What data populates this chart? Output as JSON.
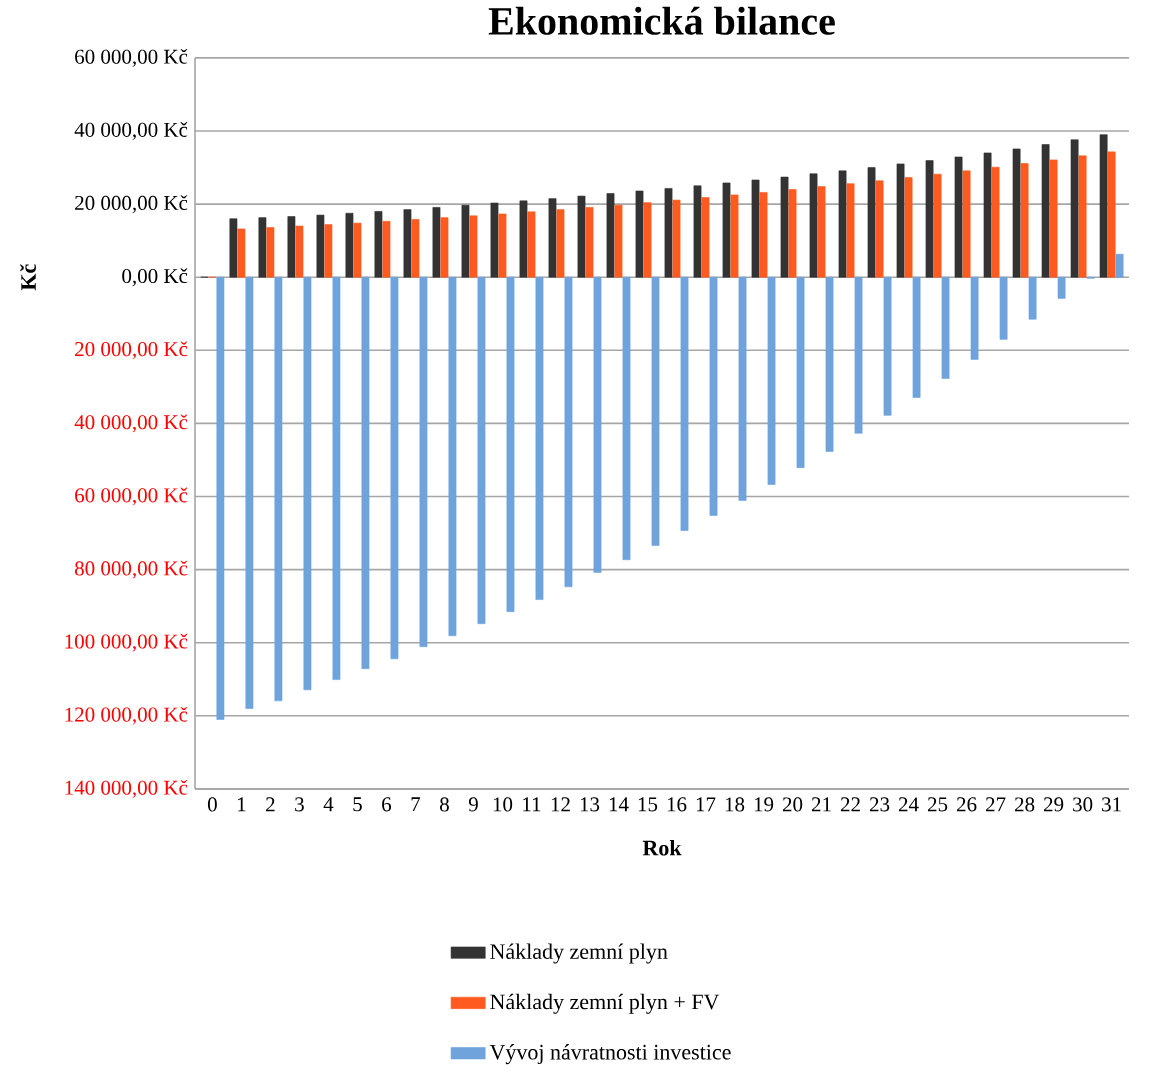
{
  "chart_data": {
    "type": "bar",
    "title": "Ekonomická bilance",
    "xlabel": "Rok",
    "ylabel": "Kč",
    "categories": [
      "0",
      "1",
      "2",
      "3",
      "4",
      "5",
      "6",
      "7",
      "8",
      "9",
      "10",
      "11",
      "12",
      "13",
      "14",
      "15",
      "16",
      "17",
      "18",
      "19",
      "20",
      "21",
      "22",
      "23",
      "24",
      "25",
      "26",
      "27",
      "28",
      "29",
      "30",
      "31"
    ],
    "series": [
      {
        "name": "Náklady zemní plyn",
        "color": "#333333",
        "values": [
          0,
          16000,
          16300,
          16600,
          17000,
          17500,
          18000,
          18500,
          19100,
          19700,
          20300,
          20900,
          21500,
          22200,
          22900,
          23600,
          24300,
          25000,
          25800,
          26600,
          27400,
          28300,
          29100,
          30000,
          31000,
          31900,
          32900,
          34000,
          35100,
          36300,
          37600,
          39000
        ]
      },
      {
        "name": "Náklady zemní plyn + FV",
        "color": "#ff5a1f",
        "values": [
          0,
          13200,
          13600,
          14000,
          14400,
          14800,
          15300,
          15800,
          16300,
          16800,
          17300,
          17900,
          18500,
          19100,
          19700,
          20400,
          21100,
          21800,
          22500,
          23200,
          24000,
          24800,
          25600,
          26400,
          27300,
          28200,
          29100,
          30100,
          31100,
          32100,
          33200,
          34300
        ]
      },
      {
        "name": "Vývoj návratnosti investice",
        "color": "#6fa3dc",
        "values": [
          -121000,
          -118000,
          -115900,
          -112900,
          -110100,
          -107100,
          -104400,
          -101100,
          -98100,
          -94800,
          -91500,
          -88200,
          -84700,
          -80800,
          -77300,
          -73400,
          -69300,
          -65200,
          -61100,
          -56700,
          -52100,
          -47700,
          -42700,
          -37800,
          -32900,
          -27700,
          -22500,
          -17000,
          -11500,
          -5800,
          -300,
          6300
        ]
      }
    ],
    "ylim": [
      -140000,
      60000
    ],
    "yticks": [
      {
        "value": -140000,
        "label": "140 000,00 Kč"
      },
      {
        "value": -120000,
        "label": "120 000,00 Kč"
      },
      {
        "value": -100000,
        "label": "100 000,00 Kč"
      },
      {
        "value": -80000,
        "label": "80 000,00 Kč"
      },
      {
        "value": -60000,
        "label": "60 000,00 Kč"
      },
      {
        "value": -40000,
        "label": "40 000,00 Kč"
      },
      {
        "value": -20000,
        "label": "20 000,00 Kč"
      },
      {
        "value": 0,
        "label": "0,00 Kč"
      },
      {
        "value": 20000,
        "label": "20 000,00 Kč"
      },
      {
        "value": 40000,
        "label": "40 000,00 Kč"
      },
      {
        "value": 60000,
        "label": "60 000,00 Kč"
      }
    ],
    "grid": "y",
    "legend": "bottom"
  }
}
